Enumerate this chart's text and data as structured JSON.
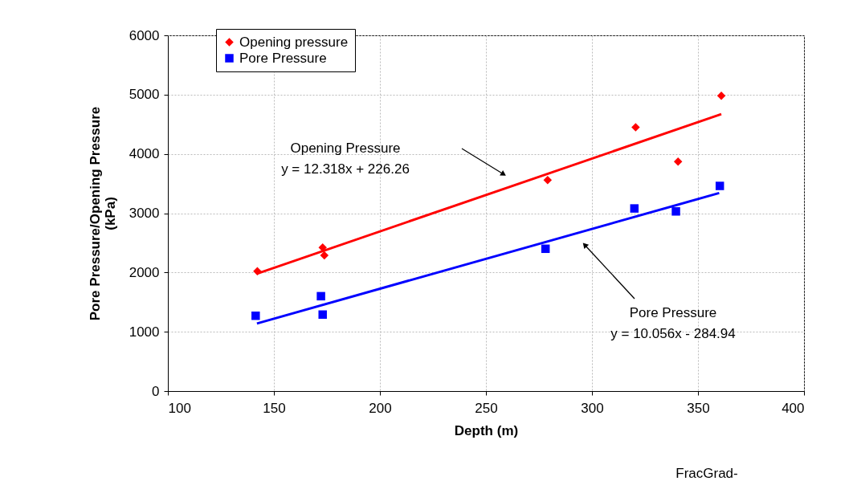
{
  "chart_data": {
    "type": "scatter",
    "xlabel": "Depth (m)",
    "ylabel": "Pore Pressure/Opening Pressure (kPa)",
    "xlim": [
      100,
      400
    ],
    "xticks": [
      100,
      150,
      200,
      250,
      300,
      350,
      400
    ],
    "ylim": [
      0,
      6000
    ],
    "yticks": [
      0,
      1000,
      2000,
      3000,
      4000,
      5000,
      6000
    ],
    "grid": true,
    "legend": "top left",
    "series": [
      {
        "name": "Opening pressure",
        "marker": "diamond",
        "color": "#ff0000",
        "x": [
          142.2,
          173,
          173.8,
          279.1,
          320.6,
          340.6,
          361
        ],
        "values": [
          2020,
          2420,
          2290,
          3560,
          4450,
          3870,
          4980
        ]
      },
      {
        "name": "Pore Pressure",
        "marker": "square",
        "color": "#0000ff",
        "x": [
          141.4,
          172.2,
          173,
          278.1,
          320,
          339.6,
          360.3
        ],
        "values": [
          1270,
          1600,
          1290,
          2400,
          3080,
          3030,
          3460
        ]
      },
      {
        "type": "line",
        "color": "#ff0000",
        "x": [
          142,
          361
        ],
        "values": [
          1980,
          4670
        ]
      },
      {
        "type": "line",
        "color": "#0000ff",
        "x": [
          142,
          360
        ],
        "values": [
          1140,
          3340
        ]
      }
    ],
    "annotations": [
      "Opening Pressure\ny = 12.318x + 226.26",
      "Pore Pressure\ny = 10.056x - 284.94",
      "FracGrad-"
    ]
  }
}
